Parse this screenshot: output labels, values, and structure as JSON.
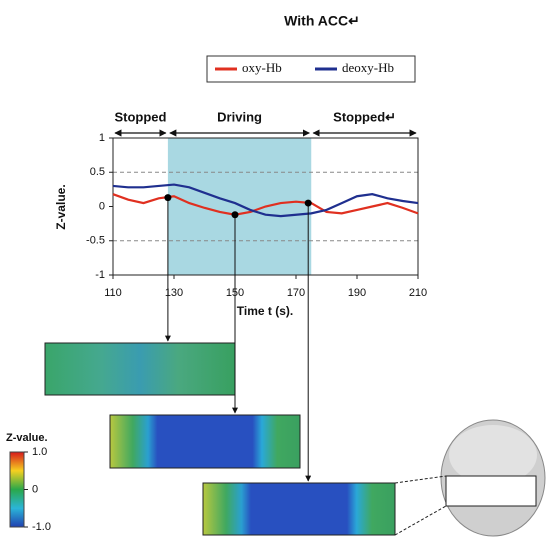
{
  "chart_data": {
    "type": "line",
    "title": "With ACC↵",
    "x_label": "Time t (s).",
    "y_label": "Z-value.",
    "x": [
      110,
      115,
      120,
      125,
      130,
      135,
      140,
      145,
      150,
      155,
      160,
      165,
      170,
      175,
      180,
      185,
      190,
      195,
      200,
      205,
      210
    ],
    "series": [
      {
        "name": "oxy-Hb",
        "color": "#e03020",
        "values": [
          0.18,
          0.1,
          0.05,
          0.12,
          0.15,
          0.05,
          -0.02,
          -0.08,
          -0.12,
          -0.08,
          0,
          0.05,
          0.07,
          0.05,
          -0.08,
          -0.1,
          -0.05,
          0,
          0.05,
          -0.02,
          -0.1
        ]
      },
      {
        "name": "deoxy-Hb",
        "color": "#1f2f8f",
        "values": [
          0.3,
          0.28,
          0.28,
          0.3,
          0.32,
          0.28,
          0.2,
          0.12,
          0.05,
          -0.05,
          -0.12,
          -0.14,
          -0.12,
          -0.1,
          -0.05,
          0.05,
          0.15,
          0.18,
          0.12,
          0.08,
          0.05
        ]
      }
    ],
    "xlim": [
      110,
      210
    ],
    "xticks": [
      110,
      130,
      150,
      170,
      190,
      210
    ],
    "ylim": [
      -1,
      1
    ],
    "yticks": [
      -1,
      -0.5,
      0,
      0.5,
      1
    ],
    "grid": true,
    "legend": "top",
    "phases": [
      {
        "label": "Stopped",
        "range": [
          110,
          128
        ]
      },
      {
        "label": "Driving",
        "range": [
          128,
          175
        ],
        "shaded": true,
        "color": "#a9d8e2"
      },
      {
        "label": "Stopped↵",
        "range": [
          175,
          210
        ]
      }
    ],
    "markers": {
      "x": [
        128,
        150,
        174
      ],
      "y": [
        0.13,
        -0.12,
        0.05
      ]
    },
    "colorbar": {
      "title": "Z-value.",
      "ticks": [
        {
          "value": 1,
          "label": "1.0"
        },
        0,
        {
          "value": -1,
          "label": "-1.0"
        }
      ]
    }
  }
}
